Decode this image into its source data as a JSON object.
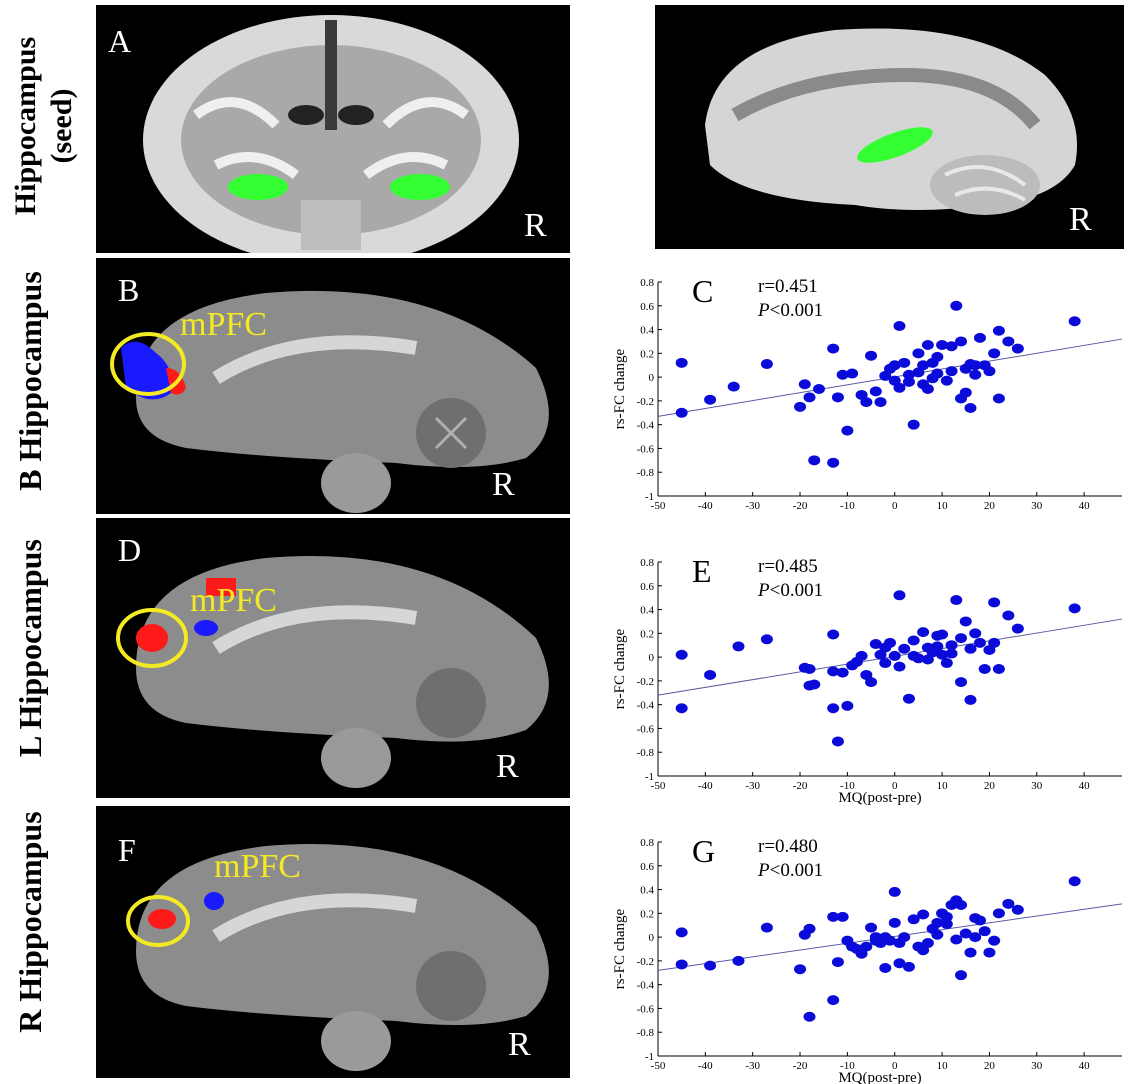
{
  "row_labels": {
    "seed_line1": "Hippocampus",
    "seed_line2": "(seed)",
    "b": "B Hippocampus",
    "l": "L Hippocampus",
    "r": "R Hippocampus"
  },
  "panels": {
    "A": {
      "letter": "A",
      "side": "R"
    },
    "A2": {
      "side": "R"
    },
    "B": {
      "letter": "B",
      "side": "R",
      "region": "mPFC"
    },
    "D": {
      "letter": "D",
      "side": "R",
      "region": "mPFC"
    },
    "F": {
      "letter": "F",
      "side": "R",
      "region": "mPFC"
    }
  },
  "colors": {
    "roi": "#33ff33",
    "pos": "#ff1a1a",
    "neg": "#1a1aff",
    "circle": "#f4ea23",
    "point": "#0a0ad9",
    "fit": "#5a5aa8"
  },
  "chart_data": [
    {
      "type": "scatter",
      "panel_label": "C",
      "r_text": "r=0.451",
      "p_italic": "P",
      "p_rest": "<0.001",
      "xlabel": "",
      "ylabel": "rs-FC change",
      "xlim": [
        -50,
        48
      ],
      "ylim": [
        -1,
        0.8
      ],
      "xticks": [
        -50,
        -40,
        -30,
        -20,
        -10,
        0,
        10,
        20,
        30,
        40
      ],
      "yticks": [
        -1,
        -0.8,
        -0.6,
        -0.4,
        -0.2,
        0,
        0.2,
        0.4,
        0.6,
        0.8
      ],
      "fit": {
        "x": [
          -50,
          48
        ],
        "y": [
          -0.33,
          0.32
        ]
      },
      "points": [
        [
          -45,
          0.12
        ],
        [
          -45,
          -0.3
        ],
        [
          -39,
          -0.19
        ],
        [
          -34,
          -0.08
        ],
        [
          -27,
          0.11
        ],
        [
          -20,
          -0.25
        ],
        [
          -19,
          -0.06
        ],
        [
          -18,
          -0.17
        ],
        [
          -17,
          -0.7
        ],
        [
          -16,
          -0.1
        ],
        [
          -13,
          0.24
        ],
        [
          -13,
          -0.72
        ],
        [
          -12,
          -0.17
        ],
        [
          -10,
          -0.45
        ],
        [
          -9,
          0.03
        ],
        [
          -7,
          -0.15
        ],
        [
          -6,
          -0.21
        ],
        [
          -5,
          0.18
        ],
        [
          -4,
          -0.12
        ],
        [
          -3,
          -0.21
        ],
        [
          -2,
          0.01
        ],
        [
          -1,
          0.07
        ],
        [
          0,
          0.1
        ],
        [
          0,
          -0.03
        ],
        [
          1,
          -0.09
        ],
        [
          1,
          0.43
        ],
        [
          2,
          0.12
        ],
        [
          3,
          -0.04
        ],
        [
          3,
          0.02
        ],
        [
          4,
          -0.4
        ],
        [
          5,
          0.04
        ],
        [
          5,
          0.2
        ],
        [
          6,
          -0.06
        ],
        [
          7,
          0.27
        ],
        [
          7,
          -0.1
        ],
        [
          8,
          0.12
        ],
        [
          9,
          0.17
        ],
        [
          9,
          0.03
        ],
        [
          10,
          0.27
        ],
        [
          11,
          -0.03
        ],
        [
          12,
          0.05
        ],
        [
          13,
          0.6
        ],
        [
          14,
          0.3
        ],
        [
          14,
          -0.18
        ],
        [
          15,
          0.07
        ],
        [
          16,
          -0.26
        ],
        [
          17,
          0.02
        ],
        [
          17,
          0.1
        ],
        [
          18,
          0.33
        ],
        [
          19,
          0.1
        ],
        [
          20,
          0.05
        ],
        [
          21,
          0.2
        ],
        [
          22,
          0.39
        ],
        [
          22,
          -0.18
        ],
        [
          24,
          0.3
        ],
        [
          26,
          0.24
        ],
        [
          38,
          0.47
        ],
        [
          12,
          0.26
        ],
        [
          16,
          0.11
        ],
        [
          8,
          -0.01
        ],
        [
          -11,
          0.02
        ],
        [
          6,
          0.1
        ],
        [
          15,
          -0.13
        ]
      ]
    },
    {
      "type": "scatter",
      "panel_label": "E",
      "r_text": "r=0.485",
      "p_italic": "P",
      "p_rest": "<0.001",
      "xlabel": "MQ(post-pre)",
      "ylabel": "rs-FC change",
      "xlim": [
        -50,
        48
      ],
      "ylim": [
        -1,
        0.8
      ],
      "xticks": [
        -50,
        -40,
        -30,
        -20,
        -10,
        0,
        10,
        20,
        30,
        40
      ],
      "yticks": [
        -1,
        -0.8,
        -0.6,
        -0.4,
        -0.2,
        0,
        0.2,
        0.4,
        0.6,
        0.8
      ],
      "fit": {
        "x": [
          -50,
          48
        ],
        "y": [
          -0.32,
          0.32
        ]
      },
      "points": [
        [
          -45,
          0.02
        ],
        [
          -45,
          -0.43
        ],
        [
          -39,
          -0.15
        ],
        [
          -33,
          0.09
        ],
        [
          -27,
          0.15
        ],
        [
          -19,
          -0.09
        ],
        [
          -18,
          -0.1
        ],
        [
          -18,
          -0.24
        ],
        [
          -17,
          -0.23
        ],
        [
          -13,
          0.19
        ],
        [
          -13,
          -0.43
        ],
        [
          -13,
          -0.12
        ],
        [
          -12,
          -0.71
        ],
        [
          -11,
          -0.13
        ],
        [
          -10,
          -0.41
        ],
        [
          -9,
          -0.07
        ],
        [
          -8,
          -0.04
        ],
        [
          -7,
          0.01
        ],
        [
          -6,
          -0.15
        ],
        [
          -5,
          -0.21
        ],
        [
          -4,
          0.11
        ],
        [
          -3,
          0.02
        ],
        [
          -2,
          -0.05
        ],
        [
          -1,
          0.12
        ],
        [
          0,
          0.01
        ],
        [
          1,
          -0.08
        ],
        [
          1,
          0.52
        ],
        [
          2,
          0.07
        ],
        [
          3,
          -0.35
        ],
        [
          4,
          0.01
        ],
        [
          4,
          0.14
        ],
        [
          5,
          -0.01
        ],
        [
          6,
          0.21
        ],
        [
          7,
          -0.02
        ],
        [
          8,
          0.04
        ],
        [
          9,
          0.09
        ],
        [
          9,
          0.18
        ],
        [
          10,
          0.19
        ],
        [
          11,
          -0.05
        ],
        [
          12,
          0.03
        ],
        [
          13,
          0.48
        ],
        [
          14,
          0.16
        ],
        [
          14,
          -0.21
        ],
        [
          15,
          0.3
        ],
        [
          16,
          0.07
        ],
        [
          16,
          -0.36
        ],
        [
          17,
          0.2
        ],
        [
          18,
          0.12
        ],
        [
          19,
          -0.1
        ],
        [
          20,
          0.06
        ],
        [
          21,
          0.12
        ],
        [
          21,
          0.46
        ],
        [
          22,
          -0.1
        ],
        [
          24,
          0.35
        ],
        [
          26,
          0.24
        ],
        [
          38,
          0.41
        ],
        [
          12,
          0.1
        ],
        [
          7,
          0.08
        ],
        [
          -2,
          0.08
        ],
        [
          10,
          0.02
        ]
      ]
    },
    {
      "type": "scatter",
      "panel_label": "G",
      "r_text": "r=0.480",
      "p_italic": "P",
      "p_rest": "<0.001",
      "xlabel": "MQ(post-pre)",
      "ylabel": "rs-FC change",
      "xlim": [
        -50,
        48
      ],
      "ylim": [
        -1,
        0.8
      ],
      "xticks": [
        -50,
        -40,
        -30,
        -20,
        -10,
        0,
        10,
        20,
        30,
        40
      ],
      "yticks": [
        -1,
        -0.8,
        -0.6,
        -0.4,
        -0.2,
        0,
        0.2,
        0.4,
        0.6,
        0.8
      ],
      "fit": {
        "x": [
          -50,
          48
        ],
        "y": [
          -0.28,
          0.28
        ]
      },
      "points": [
        [
          -45,
          0.04
        ],
        [
          -45,
          -0.23
        ],
        [
          -39,
          -0.24
        ],
        [
          -33,
          -0.2
        ],
        [
          -27,
          0.08
        ],
        [
          -20,
          -0.27
        ],
        [
          -19,
          0.02
        ],
        [
          -18,
          -0.67
        ],
        [
          -18,
          0.07
        ],
        [
          -13,
          -0.53
        ],
        [
          -13,
          0.17
        ],
        [
          -12,
          -0.21
        ],
        [
          -11,
          0.17
        ],
        [
          -10,
          -0.03
        ],
        [
          -9,
          -0.08
        ],
        [
          -8,
          -0.1
        ],
        [
          -7,
          -0.14
        ],
        [
          -6,
          -0.08
        ],
        [
          -5,
          0.08
        ],
        [
          -4,
          -0.03
        ],
        [
          -3,
          -0.05
        ],
        [
          -2,
          0.0
        ],
        [
          -2,
          -0.26
        ],
        [
          -1,
          -0.03
        ],
        [
          0,
          0.12
        ],
        [
          0,
          0.38
        ],
        [
          1,
          -0.05
        ],
        [
          1,
          -0.22
        ],
        [
          2,
          0.0
        ],
        [
          3,
          -0.25
        ],
        [
          4,
          0.15
        ],
        [
          5,
          -0.08
        ],
        [
          6,
          0.19
        ],
        [
          7,
          -0.05
        ],
        [
          8,
          0.07
        ],
        [
          9,
          0.12
        ],
        [
          9,
          0.02
        ],
        [
          10,
          0.2
        ],
        [
          11,
          0.11
        ],
        [
          12,
          0.27
        ],
        [
          13,
          0.31
        ],
        [
          14,
          0.27
        ],
        [
          14,
          -0.32
        ],
        [
          15,
          0.03
        ],
        [
          16,
          -0.13
        ],
        [
          17,
          0.16
        ],
        [
          17,
          0.0
        ],
        [
          18,
          0.14
        ],
        [
          19,
          0.05
        ],
        [
          20,
          -0.13
        ],
        [
          21,
          -0.03
        ],
        [
          22,
          0.2
        ],
        [
          24,
          0.28
        ],
        [
          26,
          0.23
        ],
        [
          38,
          0.47
        ],
        [
          11,
          0.17
        ],
        [
          6,
          -0.11
        ],
        [
          -4,
          0.0
        ],
        [
          13,
          -0.02
        ]
      ]
    }
  ]
}
